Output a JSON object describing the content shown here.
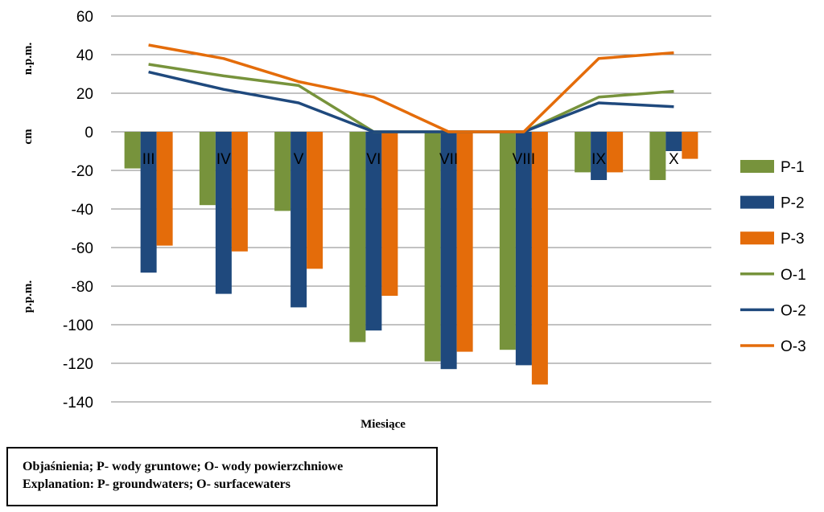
{
  "chart_data": {
    "type": "bar",
    "categories": [
      "III",
      "IV",
      "V",
      "VI",
      "VII",
      "VIII",
      "IX",
      "X"
    ],
    "series": [
      {
        "name": "P-1",
        "kind": "bar",
        "color": "#77933c",
        "values": [
          -19,
          -38,
          -41,
          -109,
          -119,
          -113,
          -21,
          -25
        ]
      },
      {
        "name": "P-2",
        "kind": "bar",
        "color": "#1f497d",
        "values": [
          -73,
          -84,
          -91,
          -103,
          -123,
          -121,
          -25,
          -10
        ]
      },
      {
        "name": "P-3",
        "kind": "bar",
        "color": "#e46c0a",
        "values": [
          -59,
          -62,
          -71,
          -85,
          -114,
          -131,
          -21,
          -14
        ]
      },
      {
        "name": "O-1",
        "kind": "line",
        "color": "#77933c",
        "values": [
          35,
          29,
          24,
          0,
          0,
          0,
          18,
          21
        ]
      },
      {
        "name": "O-2",
        "kind": "line",
        "color": "#1f497d",
        "values": [
          31,
          22,
          15,
          0,
          0,
          0,
          15,
          13
        ]
      },
      {
        "name": "O-3",
        "kind": "line",
        "color": "#e46c0a",
        "values": [
          45,
          38,
          26,
          18,
          0,
          0,
          38,
          41
        ]
      }
    ],
    "yticks": [
      "60",
      "40",
      "20",
      "0",
      "-20",
      "-40",
      "-60",
      "-80",
      "-100",
      "-120",
      "-140"
    ],
    "ylim": [
      -140,
      60
    ],
    "xlabel": "Miesiące",
    "ylabel_upper": "n.p.m.",
    "ylabel_mid": "cm",
    "ylabel_lower": "p.p.m.",
    "grid": true,
    "legend_position": "right"
  },
  "note": {
    "line1": "Objaśnienia; P- wody gruntowe; O- wody powierzchniowe",
    "line2": "Explanation: P- groundwaters; O- surfacewaters"
  }
}
